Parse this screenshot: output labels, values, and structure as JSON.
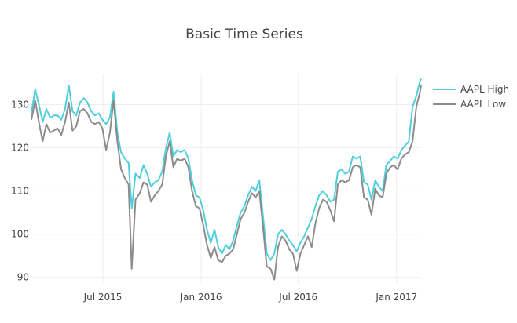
{
  "chart_data": {
    "type": "line",
    "title": "Basic Time Series",
    "xlabel": "",
    "ylabel": "",
    "x_ticks": [
      {
        "date": "2015-07-01",
        "label": "Jul 2015"
      },
      {
        "date": "2016-01-01",
        "label": "Jan 2016"
      },
      {
        "date": "2016-07-01",
        "label": "Jul 2016"
      },
      {
        "date": "2017-01-01",
        "label": "Jan 2017"
      }
    ],
    "y_ticks": [
      90,
      100,
      110,
      120,
      130
    ],
    "xlim": [
      "2015-02-17",
      "2017-02-16"
    ],
    "ylim": [
      88.5,
      137
    ],
    "grid": true,
    "legend_position": "top-right",
    "colors": {
      "AAPL High": "#17BECF",
      "AAPL Low": "#7F7F7F"
    },
    "series": [
      {
        "name": "AAPL High",
        "color": "#17BECF",
        "points": [
          [
            "2015-02-17",
            128.0
          ],
          [
            "2015-02-24",
            133.6
          ],
          [
            "2015-03-03",
            130.0
          ],
          [
            "2015-03-10",
            126.0
          ],
          [
            "2015-03-17",
            129.0
          ],
          [
            "2015-03-24",
            127.0
          ],
          [
            "2015-03-31",
            127.5
          ],
          [
            "2015-04-07",
            127.5
          ],
          [
            "2015-04-14",
            126.5
          ],
          [
            "2015-04-21",
            129.0
          ],
          [
            "2015-04-28",
            134.5
          ],
          [
            "2015-05-05",
            128.5
          ],
          [
            "2015-05-12",
            127.5
          ],
          [
            "2015-05-19",
            130.5
          ],
          [
            "2015-05-26",
            131.5
          ],
          [
            "2015-06-02",
            130.5
          ],
          [
            "2015-06-09",
            128.5
          ],
          [
            "2015-06-16",
            127.5
          ],
          [
            "2015-06-23",
            128.0
          ],
          [
            "2015-06-30",
            126.5
          ],
          [
            "2015-07-07",
            125.5
          ],
          [
            "2015-07-14",
            127.0
          ],
          [
            "2015-07-21",
            133.0
          ],
          [
            "2015-07-28",
            123.5
          ],
          [
            "2015-08-04",
            119.0
          ],
          [
            "2015-08-11",
            117.5
          ],
          [
            "2015-08-18",
            116.5
          ],
          [
            "2015-08-24",
            106.0
          ],
          [
            "2015-08-31",
            114.0
          ],
          [
            "2015-09-08",
            113.0
          ],
          [
            "2015-09-15",
            116.0
          ],
          [
            "2015-09-22",
            114.0
          ],
          [
            "2015-09-29",
            111.0
          ],
          [
            "2015-10-06",
            112.0
          ],
          [
            "2015-10-13",
            112.5
          ],
          [
            "2015-10-20",
            114.5
          ],
          [
            "2015-10-27",
            120.0
          ],
          [
            "2015-11-03",
            123.5
          ],
          [
            "2015-11-10",
            118.0
          ],
          [
            "2015-11-17",
            119.5
          ],
          [
            "2015-11-24",
            119.0
          ],
          [
            "2015-12-01",
            119.5
          ],
          [
            "2015-12-08",
            117.5
          ],
          [
            "2015-12-15",
            112.5
          ],
          [
            "2015-12-22",
            109.0
          ],
          [
            "2015-12-29",
            108.5
          ],
          [
            "2016-01-05",
            105.5
          ],
          [
            "2016-01-12",
            101.0
          ],
          [
            "2016-01-19",
            98.0
          ],
          [
            "2016-01-26",
            101.0
          ],
          [
            "2016-02-02",
            97.0
          ],
          [
            "2016-02-09",
            95.5
          ],
          [
            "2016-02-16",
            97.5
          ],
          [
            "2016-02-23",
            96.5
          ],
          [
            "2016-03-01",
            98.5
          ],
          [
            "2016-03-08",
            102.0
          ],
          [
            "2016-03-15",
            105.0
          ],
          [
            "2016-03-22",
            106.5
          ],
          [
            "2016-03-29",
            109.0
          ],
          [
            "2016-04-05",
            111.0
          ],
          [
            "2016-04-12",
            110.0
          ],
          [
            "2016-04-19",
            112.5
          ],
          [
            "2016-04-26",
            104.0
          ],
          [
            "2016-05-03",
            95.5
          ],
          [
            "2016-05-10",
            94.0
          ],
          [
            "2016-05-17",
            95.5
          ],
          [
            "2016-05-24",
            100.0
          ],
          [
            "2016-05-31",
            101.0
          ],
          [
            "2016-06-07",
            100.0
          ],
          [
            "2016-06-14",
            98.5
          ],
          [
            "2016-06-21",
            97.5
          ],
          [
            "2016-06-28",
            96.0
          ],
          [
            "2016-07-05",
            98.0
          ],
          [
            "2016-07-12",
            99.5
          ],
          [
            "2016-07-19",
            101.5
          ],
          [
            "2016-07-26",
            103.5
          ],
          [
            "2016-08-02",
            106.5
          ],
          [
            "2016-08-09",
            109.0
          ],
          [
            "2016-08-16",
            110.0
          ],
          [
            "2016-08-23",
            109.0
          ],
          [
            "2016-08-30",
            107.5
          ],
          [
            "2016-09-06",
            108.0
          ],
          [
            "2016-09-13",
            114.5
          ],
          [
            "2016-09-20",
            115.0
          ],
          [
            "2016-09-27",
            114.0
          ],
          [
            "2016-10-04",
            114.5
          ],
          [
            "2016-10-11",
            118.0
          ],
          [
            "2016-10-18",
            117.5
          ],
          [
            "2016-10-25",
            118.0
          ],
          [
            "2016-11-01",
            112.0
          ],
          [
            "2016-11-08",
            111.5
          ],
          [
            "2016-11-15",
            108.0
          ],
          [
            "2016-11-22",
            112.5
          ],
          [
            "2016-11-29",
            111.0
          ],
          [
            "2016-12-06",
            110.0
          ],
          [
            "2016-12-13",
            116.0
          ],
          [
            "2016-12-20",
            117.0
          ],
          [
            "2016-12-27",
            118.0
          ],
          [
            "2017-01-03",
            117.5
          ],
          [
            "2017-01-10",
            119.5
          ],
          [
            "2017-01-17",
            120.5
          ],
          [
            "2017-01-24",
            121.5
          ],
          [
            "2017-01-31",
            129.5
          ],
          [
            "2017-02-07",
            132.0
          ],
          [
            "2017-02-14",
            135.5
          ],
          [
            "2017-02-16",
            136.0
          ]
        ]
      },
      {
        "name": "AAPL Low",
        "color": "#7F7F7F",
        "points": [
          [
            "2015-02-17",
            126.5
          ],
          [
            "2015-02-24",
            131.0
          ],
          [
            "2015-03-03",
            126.0
          ],
          [
            "2015-03-10",
            121.5
          ],
          [
            "2015-03-17",
            125.5
          ],
          [
            "2015-03-24",
            123.5
          ],
          [
            "2015-03-31",
            124.0
          ],
          [
            "2015-04-07",
            124.5
          ],
          [
            "2015-04-14",
            123.0
          ],
          [
            "2015-04-21",
            126.0
          ],
          [
            "2015-04-28",
            130.5
          ],
          [
            "2015-05-05",
            124.0
          ],
          [
            "2015-05-12",
            125.0
          ],
          [
            "2015-05-19",
            128.5
          ],
          [
            "2015-05-26",
            129.0
          ],
          [
            "2015-06-02",
            128.0
          ],
          [
            "2015-06-09",
            126.0
          ],
          [
            "2015-06-16",
            125.5
          ],
          [
            "2015-06-23",
            126.0
          ],
          [
            "2015-06-30",
            124.5
          ],
          [
            "2015-07-07",
            119.5
          ],
          [
            "2015-07-14",
            123.5
          ],
          [
            "2015-07-21",
            131.0
          ],
          [
            "2015-07-28",
            121.5
          ],
          [
            "2015-08-04",
            115.0
          ],
          [
            "2015-08-11",
            113.0
          ],
          [
            "2015-08-18",
            111.5
          ],
          [
            "2015-08-24",
            92.0
          ],
          [
            "2015-08-31",
            108.0
          ],
          [
            "2015-09-08",
            109.5
          ],
          [
            "2015-09-15",
            112.0
          ],
          [
            "2015-09-22",
            111.5
          ],
          [
            "2015-09-29",
            107.5
          ],
          [
            "2015-10-06",
            109.0
          ],
          [
            "2015-10-13",
            110.0
          ],
          [
            "2015-10-20",
            111.5
          ],
          [
            "2015-10-27",
            118.0
          ],
          [
            "2015-11-03",
            121.5
          ],
          [
            "2015-11-10",
            115.5
          ],
          [
            "2015-11-17",
            117.5
          ],
          [
            "2015-11-24",
            117.0
          ],
          [
            "2015-12-01",
            117.5
          ],
          [
            "2015-12-08",
            115.5
          ],
          [
            "2015-12-15",
            110.0
          ],
          [
            "2015-12-22",
            106.5
          ],
          [
            "2015-12-29",
            106.0
          ],
          [
            "2016-01-05",
            102.0
          ],
          [
            "2016-01-12",
            97.5
          ],
          [
            "2016-01-19",
            94.5
          ],
          [
            "2016-01-26",
            97.0
          ],
          [
            "2016-02-02",
            94.0
          ],
          [
            "2016-02-09",
            93.5
          ],
          [
            "2016-02-16",
            95.0
          ],
          [
            "2016-02-23",
            95.5
          ],
          [
            "2016-03-01",
            96.5
          ],
          [
            "2016-03-08",
            100.0
          ],
          [
            "2016-03-15",
            103.5
          ],
          [
            "2016-03-22",
            105.0
          ],
          [
            "2016-03-29",
            107.5
          ],
          [
            "2016-04-05",
            109.5
          ],
          [
            "2016-04-12",
            108.5
          ],
          [
            "2016-04-19",
            110.0
          ],
          [
            "2016-04-26",
            101.5
          ],
          [
            "2016-05-03",
            92.5
          ],
          [
            "2016-05-10",
            92.0
          ],
          [
            "2016-05-17",
            89.5
          ],
          [
            "2016-05-24",
            97.0
          ],
          [
            "2016-05-31",
            99.5
          ],
          [
            "2016-06-07",
            98.5
          ],
          [
            "2016-06-14",
            96.5
          ],
          [
            "2016-06-21",
            95.5
          ],
          [
            "2016-06-28",
            91.5
          ],
          [
            "2016-07-05",
            95.5
          ],
          [
            "2016-07-12",
            97.5
          ],
          [
            "2016-07-19",
            99.5
          ],
          [
            "2016-07-26",
            97.0
          ],
          [
            "2016-08-02",
            102.5
          ],
          [
            "2016-08-09",
            106.0
          ],
          [
            "2016-08-16",
            108.0
          ],
          [
            "2016-08-23",
            107.5
          ],
          [
            "2016-08-30",
            105.5
          ],
          [
            "2016-09-06",
            103.0
          ],
          [
            "2016-09-13",
            111.5
          ],
          [
            "2016-09-20",
            112.5
          ],
          [
            "2016-09-27",
            112.0
          ],
          [
            "2016-10-04",
            112.5
          ],
          [
            "2016-10-11",
            115.5
          ],
          [
            "2016-10-18",
            116.0
          ],
          [
            "2016-10-25",
            115.5
          ],
          [
            "2016-11-01",
            108.5
          ],
          [
            "2016-11-08",
            108.0
          ],
          [
            "2016-11-15",
            104.5
          ],
          [
            "2016-11-22",
            110.5
          ],
          [
            "2016-11-29",
            109.0
          ],
          [
            "2016-12-06",
            108.5
          ],
          [
            "2016-12-13",
            114.0
          ],
          [
            "2016-12-20",
            115.5
          ],
          [
            "2016-12-27",
            116.0
          ],
          [
            "2017-01-03",
            115.0
          ],
          [
            "2017-01-10",
            117.5
          ],
          [
            "2017-01-17",
            118.5
          ],
          [
            "2017-01-24",
            119.0
          ],
          [
            "2017-01-31",
            121.5
          ],
          [
            "2017-02-07",
            129.5
          ],
          [
            "2017-02-14",
            133.0
          ],
          [
            "2017-02-16",
            134.5
          ]
        ]
      }
    ]
  }
}
